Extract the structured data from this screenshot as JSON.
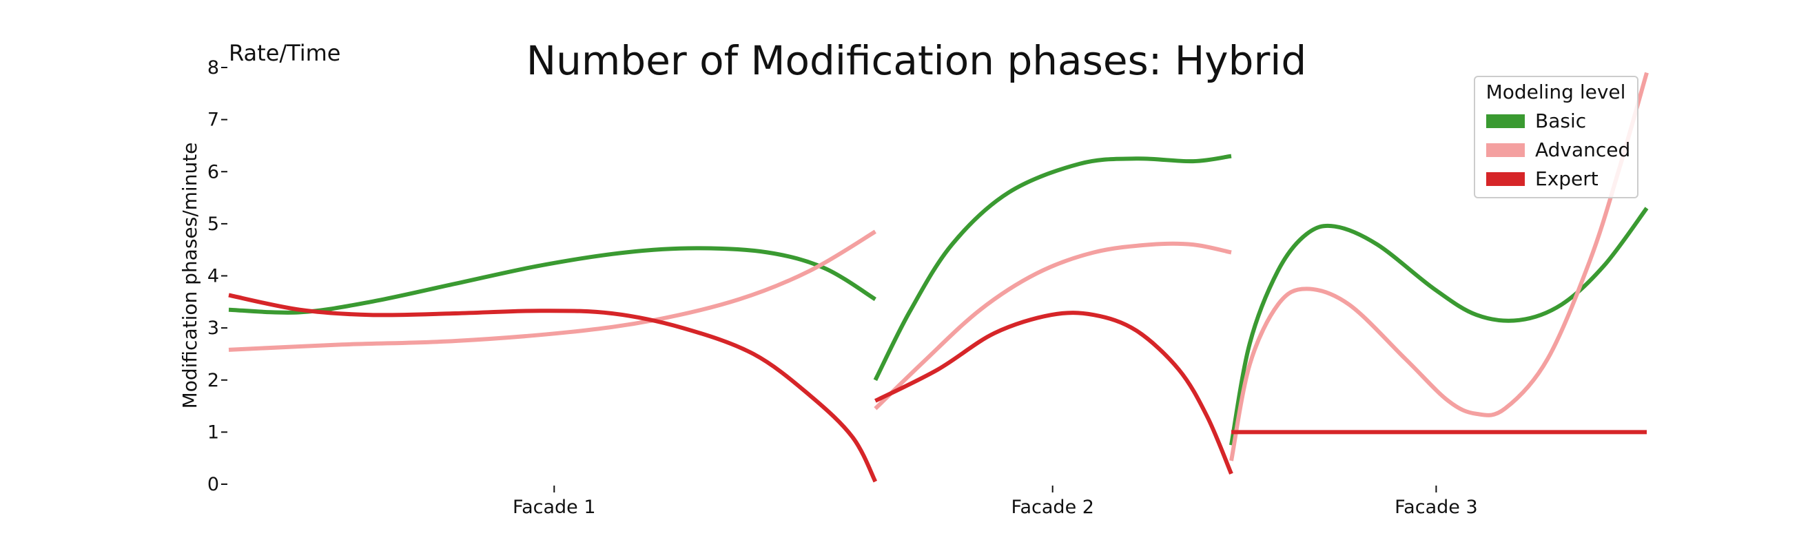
{
  "chart_data": {
    "type": "line",
    "title": "Number of Modification phases: Hybrid",
    "corner_label": "Rate/Time",
    "xlabel": "",
    "ylabel": "Modification phases/minute",
    "ylim": [
      0,
      8
    ],
    "yticks": [
      0,
      1,
      2,
      3,
      4,
      5,
      6,
      7,
      8
    ],
    "grid": false,
    "legend": {
      "title": "Modeling level",
      "placement": "top-right",
      "entries": [
        "Basic",
        "Advanced",
        "Expert"
      ]
    },
    "categories": [
      "Facade 1",
      "Facade 2",
      "Facade 3"
    ],
    "x_domain": [
      0,
      1
    ],
    "facades": [
      {
        "name": "Facade 1",
        "label_x": 0.2295,
        "x_range": [
          0.0,
          0.456
        ]
      },
      {
        "name": "Facade 2",
        "label_x": 0.581,
        "x_range": [
          0.456,
          0.707
        ]
      },
      {
        "name": "Facade 3",
        "label_x": 0.8515,
        "x_range": [
          0.707,
          1.0
        ]
      }
    ],
    "series": [
      {
        "name": "Basic",
        "color": "#3a9a31",
        "segments": [
          {
            "facade": "Facade 1",
            "points": [
              [
                0.0,
                3.35
              ],
              [
                0.05,
                3.3
              ],
              [
                0.1,
                3.5
              ],
              [
                0.16,
                3.85
              ],
              [
                0.22,
                4.2
              ],
              [
                0.28,
                4.45
              ],
              [
                0.33,
                4.53
              ],
              [
                0.38,
                4.45
              ],
              [
                0.42,
                4.15
              ],
              [
                0.456,
                3.55
              ]
            ]
          },
          {
            "facade": "Facade 2",
            "points": [
              [
                0.456,
                2.0
              ],
              [
                0.48,
                3.3
              ],
              [
                0.51,
                4.6
              ],
              [
                0.55,
                5.6
              ],
              [
                0.6,
                6.15
              ],
              [
                0.64,
                6.25
              ],
              [
                0.68,
                6.2
              ],
              [
                0.707,
                6.3
              ]
            ]
          },
          {
            "facade": "Facade 3",
            "points": [
              [
                0.707,
                0.75
              ],
              [
                0.72,
                2.7
              ],
              [
                0.74,
                4.1
              ],
              [
                0.76,
                4.8
              ],
              [
                0.78,
                4.95
              ],
              [
                0.81,
                4.6
              ],
              [
                0.85,
                3.75
              ],
              [
                0.88,
                3.25
              ],
              [
                0.91,
                3.15
              ],
              [
                0.94,
                3.45
              ],
              [
                0.97,
                4.2
              ],
              [
                1.0,
                5.3
              ]
            ]
          }
        ]
      },
      {
        "name": "Advanced",
        "color": "#f4a0a0",
        "segments": [
          {
            "facade": "Facade 1",
            "points": [
              [
                0.0,
                2.58
              ],
              [
                0.08,
                2.68
              ],
              [
                0.16,
                2.75
              ],
              [
                0.24,
                2.92
              ],
              [
                0.3,
                3.15
              ],
              [
                0.36,
                3.55
              ],
              [
                0.41,
                4.1
              ],
              [
                0.456,
                4.85
              ]
            ]
          },
          {
            "facade": "Facade 2",
            "points": [
              [
                0.456,
                1.45
              ],
              [
                0.49,
                2.35
              ],
              [
                0.53,
                3.35
              ],
              [
                0.57,
                4.05
              ],
              [
                0.61,
                4.45
              ],
              [
                0.65,
                4.6
              ],
              [
                0.68,
                4.6
              ],
              [
                0.707,
                4.45
              ]
            ]
          },
          {
            "facade": "Facade 3",
            "points": [
              [
                0.707,
                0.45
              ],
              [
                0.72,
                2.3
              ],
              [
                0.74,
                3.45
              ],
              [
                0.76,
                3.75
              ],
              [
                0.79,
                3.45
              ],
              [
                0.83,
                2.4
              ],
              [
                0.86,
                1.6
              ],
              [
                0.88,
                1.35
              ],
              [
                0.9,
                1.45
              ],
              [
                0.93,
                2.4
              ],
              [
                0.96,
                4.3
              ],
              [
                0.98,
                6.0
              ],
              [
                1.0,
                7.9
              ]
            ]
          }
        ]
      },
      {
        "name": "Expert",
        "color": "#d62528",
        "segments": [
          {
            "facade": "Facade 1",
            "points": [
              [
                0.0,
                3.63
              ],
              [
                0.05,
                3.35
              ],
              [
                0.1,
                3.25
              ],
              [
                0.16,
                3.28
              ],
              [
                0.22,
                3.33
              ],
              [
                0.27,
                3.28
              ],
              [
                0.32,
                3.0
              ],
              [
                0.37,
                2.5
              ],
              [
                0.41,
                1.7
              ],
              [
                0.44,
                0.9
              ],
              [
                0.456,
                0.05
              ]
            ]
          },
          {
            "facade": "Facade 2",
            "points": [
              [
                0.456,
                1.6
              ],
              [
                0.5,
                2.2
              ],
              [
                0.54,
                2.9
              ],
              [
                0.58,
                3.25
              ],
              [
                0.61,
                3.25
              ],
              [
                0.64,
                2.95
              ],
              [
                0.67,
                2.2
              ],
              [
                0.69,
                1.3
              ],
              [
                0.707,
                0.2
              ]
            ]
          },
          {
            "facade": "Facade 3",
            "points": [
              [
                0.707,
                1.0
              ],
              [
                1.0,
                1.0
              ]
            ]
          }
        ]
      }
    ]
  }
}
